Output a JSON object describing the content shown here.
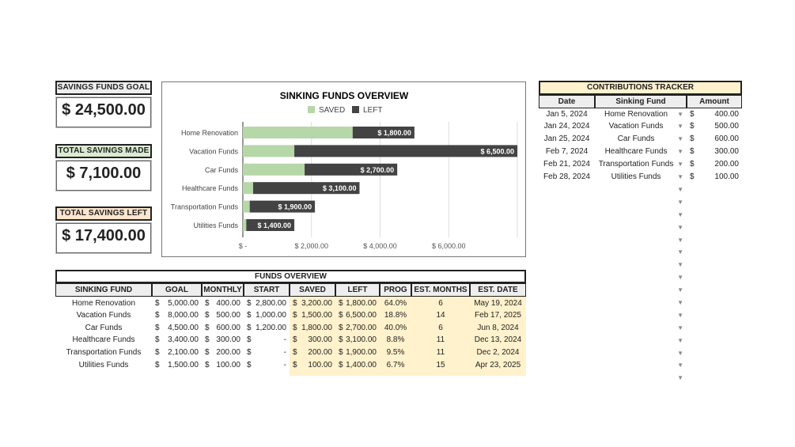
{
  "summary": [
    {
      "label": "SAVINGS FUNDS GOAL",
      "value": "$ 24,500.00",
      "color": "#eeeeee"
    },
    {
      "label": "TOTAL SAVINGS MADE",
      "value": "$ 7,100.00",
      "color": "#d9ead3"
    },
    {
      "label": "TOTAL SAVINGS LEFT",
      "value": "$ 17,400.00",
      "color": "#fce5cd"
    }
  ],
  "chart_data": {
    "type": "bar",
    "stacked": true,
    "orientation": "horizontal",
    "title": "SINKING FUNDS OVERVIEW",
    "categories": [
      "Home Renovation",
      "Vacation Funds",
      "Car Funds",
      "Healthcare Funds",
      "Transportation Funds",
      "Utilities Funds"
    ],
    "series": [
      {
        "name": "SAVED",
        "color": "#b6d7a8",
        "values": [
          3200,
          1500,
          1800,
          300,
          200,
          100
        ]
      },
      {
        "name": "LEFT",
        "color": "#434343",
        "values": [
          1800,
          6500,
          2700,
          3100,
          1900,
          1400
        ],
        "labels": [
          "$ 1,800.00",
          "$ 6,500.00",
          "$ 2,700.00",
          "$ 3,100.00",
          "$ 1,900.00",
          "$ 1,400.00"
        ]
      }
    ],
    "xlim": [
      0,
      8000
    ],
    "xticks": [
      0,
      2000,
      4000,
      6000
    ],
    "xtick_labels": [
      "$ -",
      "$ 2,000.00",
      "$ 4,000.00",
      "$ 6,000.00"
    ],
    "legend": "top"
  },
  "funds": {
    "title": "FUNDS OVERVIEW",
    "headers": [
      "SINKING FUND",
      "GOAL",
      "MONTHLY",
      "START",
      "SAVED",
      "LEFT",
      "PROG",
      "EST. MONTHS",
      "EST. DATE"
    ],
    "rows": [
      [
        "Home Renovation",
        "5,000.00",
        "400.00",
        "2,800.00",
        "3,200.00",
        "1,800.00",
        "64.0%",
        "6",
        "May 19, 2024"
      ],
      [
        "Vacation Funds",
        "8,000.00",
        "500.00",
        "1,000.00",
        "1,500.00",
        "6,500.00",
        "18.8%",
        "14",
        "Feb 17, 2025"
      ],
      [
        "Car Funds",
        "4,500.00",
        "600.00",
        "1,200.00",
        "1,800.00",
        "2,700.00",
        "40.0%",
        "6",
        "Jun 8, 2024"
      ],
      [
        "Healthcare Funds",
        "3,400.00",
        "300.00",
        "-",
        "300.00",
        "3,100.00",
        "8.8%",
        "11",
        "Dec 13, 2024"
      ],
      [
        "Transportation Funds",
        "2,100.00",
        "200.00",
        "-",
        "200.00",
        "1,900.00",
        "9.5%",
        "11",
        "Dec 2, 2024"
      ],
      [
        "Utilities Funds",
        "1,500.00",
        "100.00",
        "-",
        "100.00",
        "1,400.00",
        "6.7%",
        "15",
        "Apr 23, 2025"
      ]
    ]
  },
  "contributions": {
    "title": "CONTRIBUTIONS TRACKER",
    "headers": [
      "Date",
      "Sinking Fund",
      "Amount"
    ],
    "rows": [
      [
        "Jan 5, 2024",
        "Home Renovation",
        "400.00"
      ],
      [
        "Jan 24, 2024",
        "Vacation Funds",
        "500.00"
      ],
      [
        "Jan 25, 2024",
        "Car Funds",
        "600.00"
      ],
      [
        "Feb 7, 2024",
        "Healthcare Funds",
        "300.00"
      ],
      [
        "Feb 21, 2024",
        "Transportation Funds",
        "200.00"
      ],
      [
        "Feb 28, 2024",
        "Utilities Funds",
        "100.00"
      ]
    ]
  },
  "currency": "$"
}
